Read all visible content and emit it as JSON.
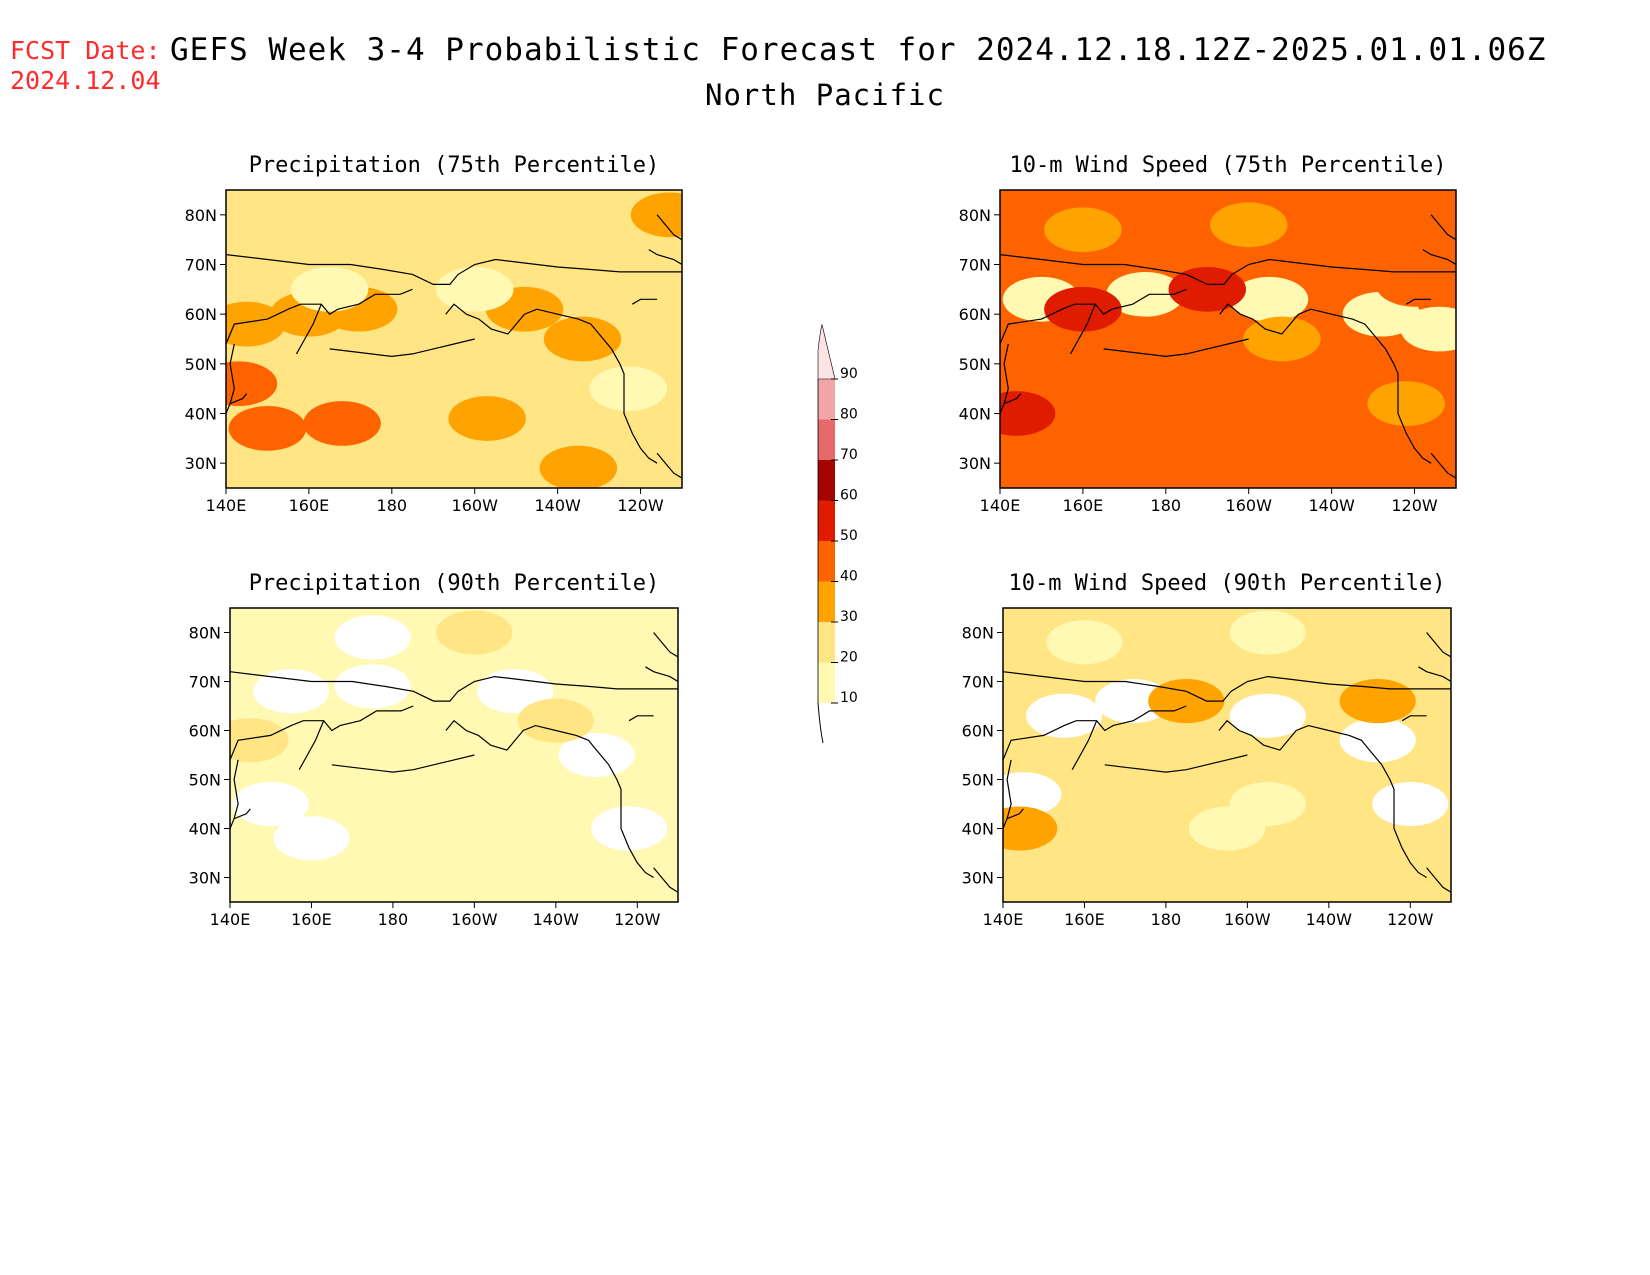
{
  "header": {
    "fcst_label": "FCST Date:",
    "fcst_date": "2024.12.04",
    "title": "GEFS Week 3-4 Probabilistic Forecast for 2024.12.18.12Z-2025.01.01.06Z",
    "subtitle": "North Pacific"
  },
  "colors": {
    "text": "#000000",
    "fcst_date": "#ff2a2a",
    "levels": [
      "#fff9b4",
      "#ffe584",
      "#ffa300",
      "#ff6300",
      "#e01c00",
      "#a50500",
      "#e56a6a",
      "#f2a5a5",
      "#fde3e3"
    ]
  },
  "colorbar": {
    "labels": [
      "10",
      "20",
      "30",
      "40",
      "50",
      "60",
      "70",
      "80",
      "90"
    ]
  },
  "panels": [
    {
      "title": "Precipitation (75th Percentile)",
      "lat_labels": [
        "80N",
        "70N",
        "60N",
        "50N",
        "40N",
        "30N"
      ],
      "lon_labels": [
        "140E",
        "160E",
        "180",
        "160W",
        "140W",
        "120W"
      ],
      "background_level": 1,
      "patches": [
        {
          "lon": 145,
          "lat": 58,
          "level": 2
        },
        {
          "lon": 143,
          "lat": 46,
          "level": 3
        },
        {
          "lon": 150,
          "lat": 37,
          "level": 3
        },
        {
          "lon": 168,
          "lat": 38,
          "level": 3
        },
        {
          "lon": 160,
          "lat": 60,
          "level": 2
        },
        {
          "lon": 172,
          "lat": 61,
          "level": 2
        },
        {
          "lon": 212,
          "lat": 61,
          "level": 2
        },
        {
          "lon": 226,
          "lat": 55,
          "level": 2
        },
        {
          "lon": 247,
          "lat": 80,
          "level": 2
        },
        {
          "lon": 165,
          "lat": 65,
          "level": 0
        },
        {
          "lon": 200,
          "lat": 65,
          "level": 0
        },
        {
          "lon": 237,
          "lat": 45,
          "level": 0
        },
        {
          "lon": 203,
          "lat": 39,
          "level": 2
        },
        {
          "lon": 225,
          "lat": 29,
          "level": 2
        }
      ]
    },
    {
      "title": "10-m Wind Speed (75th Percentile)",
      "lat_labels": [
        "80N",
        "70N",
        "60N",
        "50N",
        "40N",
        "30N"
      ],
      "lon_labels": [
        "140E",
        "160E",
        "180",
        "160W",
        "140W",
        "120W"
      ],
      "background_level": 3,
      "patches": [
        {
          "lon": 160,
          "lat": 77,
          "level": 2
        },
        {
          "lon": 200,
          "lat": 78,
          "level": 2
        },
        {
          "lon": 235,
          "lat": 80,
          "level": 3
        },
        {
          "lon": 150,
          "lat": 63,
          "level": 0
        },
        {
          "lon": 175,
          "lat": 64,
          "level": 0
        },
        {
          "lon": 205,
          "lat": 63,
          "level": 0
        },
        {
          "lon": 232,
          "lat": 60,
          "level": 0
        },
        {
          "lon": 246,
          "lat": 57,
          "level": 0
        },
        {
          "lon": 240,
          "lat": 66,
          "level": 3
        },
        {
          "lon": 160,
          "lat": 61,
          "level": 4
        },
        {
          "lon": 190,
          "lat": 65,
          "level": 4
        },
        {
          "lon": 208,
          "lat": 55,
          "level": 2
        },
        {
          "lon": 238,
          "lat": 42,
          "level": 2
        },
        {
          "lon": 144,
          "lat": 40,
          "level": 4
        }
      ]
    },
    {
      "title": "Precipitation (90th Percentile)",
      "lat_labels": [
        "80N",
        "70N",
        "60N",
        "50N",
        "40N",
        "30N"
      ],
      "lon_labels": [
        "140E",
        "160E",
        "180",
        "160W",
        "140W",
        "120W"
      ],
      "background_level": 0,
      "patches": [
        {
          "lon": 175,
          "lat": 79,
          "level": -1
        },
        {
          "lon": 155,
          "lat": 68,
          "level": -1
        },
        {
          "lon": 175,
          "lat": 69,
          "level": -1
        },
        {
          "lon": 210,
          "lat": 68,
          "level": -1
        },
        {
          "lon": 150,
          "lat": 45,
          "level": -1
        },
        {
          "lon": 160,
          "lat": 38,
          "level": -1
        },
        {
          "lon": 238,
          "lat": 40,
          "level": -1
        },
        {
          "lon": 230,
          "lat": 55,
          "level": -1
        },
        {
          "lon": 145,
          "lat": 58,
          "level": 1
        },
        {
          "lon": 200,
          "lat": 80,
          "level": 1
        },
        {
          "lon": 220,
          "lat": 62,
          "level": 1
        }
      ]
    },
    {
      "title": "10-m Wind Speed (90th Percentile)",
      "lat_labels": [
        "80N",
        "70N",
        "60N",
        "50N",
        "40N",
        "30N"
      ],
      "lon_labels": [
        "140E",
        "160E",
        "180",
        "160W",
        "140W",
        "120W"
      ],
      "background_level": 1,
      "patches": [
        {
          "lon": 155,
          "lat": 63,
          "level": -1
        },
        {
          "lon": 172,
          "lat": 66,
          "level": -1
        },
        {
          "lon": 205,
          "lat": 63,
          "level": -1
        },
        {
          "lon": 232,
          "lat": 58,
          "level": -1
        },
        {
          "lon": 145,
          "lat": 47,
          "level": -1
        },
        {
          "lon": 240,
          "lat": 45,
          "level": -1
        },
        {
          "lon": 160,
          "lat": 78,
          "level": 0
        },
        {
          "lon": 205,
          "lat": 80,
          "level": 0
        },
        {
          "lon": 195,
          "lat": 40,
          "level": 0
        },
        {
          "lon": 205,
          "lat": 45,
          "level": 0
        },
        {
          "lon": 144,
          "lat": 40,
          "level": 2
        },
        {
          "lon": 185,
          "lat": 66,
          "level": 2
        },
        {
          "lon": 232,
          "lat": 66,
          "level": 2
        }
      ]
    }
  ]
}
